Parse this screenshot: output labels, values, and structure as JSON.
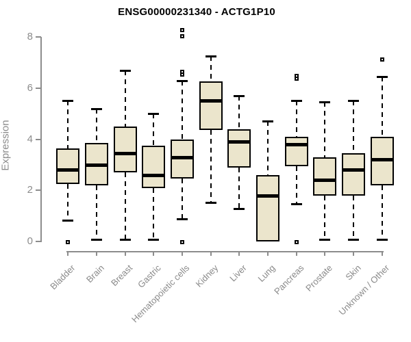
{
  "chart_data": {
    "type": "boxplot",
    "title": "ENSG00000231340 - ACTG1P10",
    "ylabel": "Expression",
    "xlabel": "",
    "ylim": [
      0,
      8
    ],
    "yticks": [
      0,
      2,
      4,
      6,
      8
    ],
    "grid": false,
    "legend": "none",
    "categories": [
      "Bladder",
      "Brain",
      "Breast",
      "Gastric",
      "Hematopoietic cells",
      "Kidney",
      "Liver",
      "Lung",
      "Pancreas",
      "Prostate",
      "Skin",
      "Unknown / Other"
    ],
    "boxes": [
      {
        "category": "Bladder",
        "whisker_low": 0.8,
        "q1": 2.25,
        "median": 2.8,
        "q3": 3.65,
        "whisker_high": 5.5,
        "outliers": [
          0
        ]
      },
      {
        "category": "Brain",
        "whisker_low": 0.05,
        "q1": 2.2,
        "median": 3.0,
        "q3": 3.85,
        "whisker_high": 5.2,
        "outliers": []
      },
      {
        "category": "Breast",
        "whisker_low": 0.05,
        "q1": 2.7,
        "median": 3.45,
        "q3": 4.5,
        "whisker_high": 6.7,
        "outliers": []
      },
      {
        "category": "Gastric",
        "whisker_low": 0.05,
        "q1": 2.1,
        "median": 2.6,
        "q3": 3.75,
        "whisker_high": 5.0,
        "outliers": []
      },
      {
        "category": "Hematopoietic cells",
        "whisker_low": 0.85,
        "q1": 2.45,
        "median": 3.3,
        "q3": 4.0,
        "whisker_high": 6.3,
        "outliers": [
          8.3,
          8.05,
          6.65,
          6.55,
          0
        ]
      },
      {
        "category": "Kidney",
        "whisker_low": 1.5,
        "q1": 4.35,
        "median": 5.5,
        "q3": 6.25,
        "whisker_high": 7.25,
        "outliers": []
      },
      {
        "category": "Liver",
        "whisker_low": 1.25,
        "q1": 2.9,
        "median": 3.9,
        "q3": 4.4,
        "whisker_high": 5.7,
        "outliers": []
      },
      {
        "category": "Lung",
        "whisker_low": 0,
        "q1": 0,
        "median": 1.8,
        "q3": 2.6,
        "whisker_high": 4.7,
        "outliers": []
      },
      {
        "category": "Pancreas",
        "whisker_low": 1.45,
        "q1": 2.95,
        "median": 3.8,
        "q3": 4.1,
        "whisker_high": 5.5,
        "outliers": [
          6.5,
          6.4,
          0
        ]
      },
      {
        "category": "Prostate",
        "whisker_low": 0.05,
        "q1": 1.8,
        "median": 2.4,
        "q3": 3.3,
        "whisker_high": 5.45,
        "outliers": []
      },
      {
        "category": "Skin",
        "whisker_low": 0.05,
        "q1": 1.8,
        "median": 2.8,
        "q3": 3.45,
        "whisker_high": 5.5,
        "outliers": []
      },
      {
        "category": "Unknown / Other",
        "whisker_low": 0.05,
        "q1": 2.2,
        "median": 3.2,
        "q3": 4.1,
        "whisker_high": 6.45,
        "outliers": [
          7.15
        ]
      }
    ],
    "colors": {
      "box_fill": "#EBE5CC",
      "box_border": "#000000",
      "median": "#000000",
      "axis": "#8C8C8C",
      "tick_label": "#8C8C8C",
      "title": "#000000",
      "background": "#FFFFFF"
    }
  }
}
